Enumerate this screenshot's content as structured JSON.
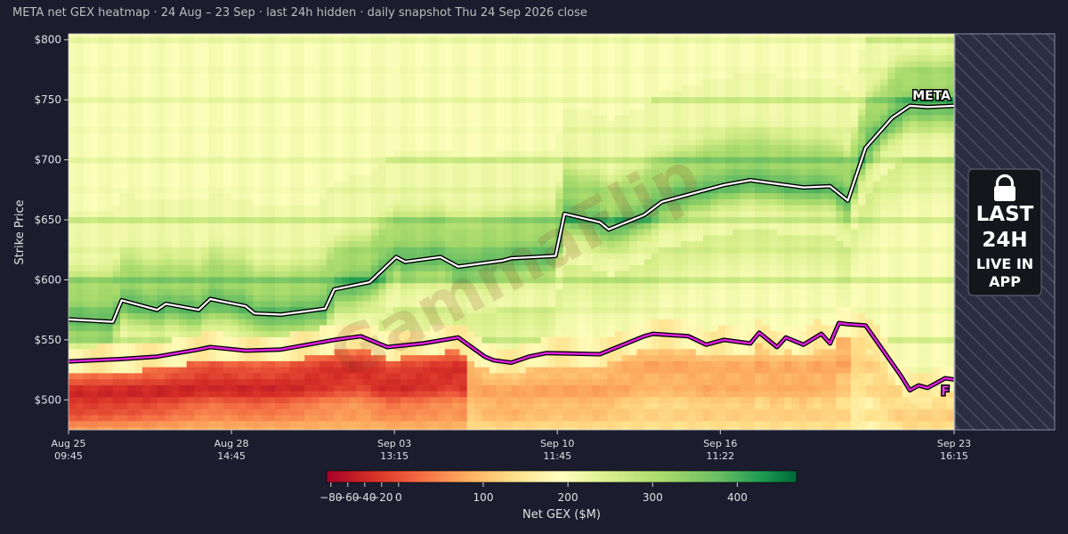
{
  "chart_data": {
    "type": "heatmap",
    "title": "META net GEX heatmap · 24 Aug – 23 Sep · last 24h hidden · daily snapshot Thu 24 Sep 2026 close",
    "ylabel": "Strike Price",
    "ylim": [
      475,
      805
    ],
    "yticks": [
      {
        "value": 800,
        "label": "$800"
      },
      {
        "value": 750,
        "label": "$750"
      },
      {
        "value": 700,
        "label": "$700"
      },
      {
        "value": 650,
        "label": "$650"
      },
      {
        "value": 600,
        "label": "$600"
      },
      {
        "value": 550,
        "label": "$550"
      },
      {
        "value": 500,
        "label": "$500"
      }
    ],
    "xticks": [
      {
        "label1": "Aug 25",
        "label2": "09:45",
        "t": 0.0
      },
      {
        "label1": "Aug 28",
        "label2": "14:45",
        "t": 0.184
      },
      {
        "label1": "Sep 03",
        "label2": "13:15",
        "t": 0.368
      },
      {
        "label1": "Sep 10",
        "label2": "11:45",
        "t": 0.552
      },
      {
        "label1": "Sep 16",
        "label2": "11:22",
        "t": 0.736
      },
      {
        "label1": "Sep 23",
        "label2": "16:15",
        "t": 1.0
      }
    ],
    "colorbar": {
      "label": "Net GEX ($M)",
      "min": -85,
      "max": 470,
      "ticks": [
        -80,
        -60,
        -40,
        -20,
        0,
        100,
        200,
        300,
        400
      ],
      "tick_labels": [
        "−80",
        "−60",
        "−40",
        "−20",
        "0",
        "100",
        "200",
        "300",
        "400"
      ]
    },
    "price_series": {
      "name": "META",
      "t": [
        0.0,
        0.05,
        0.06,
        0.1,
        0.11,
        0.147,
        0.16,
        0.2,
        0.21,
        0.24,
        0.29,
        0.3,
        0.34,
        0.37,
        0.38,
        0.42,
        0.44,
        0.49,
        0.5,
        0.55,
        0.56,
        0.6,
        0.61,
        0.65,
        0.67,
        0.72,
        0.74,
        0.77,
        0.8,
        0.83,
        0.86,
        0.88,
        0.9,
        0.93,
        0.95,
        0.97,
        1.0
      ],
      "values": [
        567,
        565,
        583,
        575,
        580,
        575,
        584,
        578,
        572,
        571,
        576,
        592,
        598,
        619,
        615,
        619,
        611,
        616,
        618,
        620,
        655,
        648,
        642,
        654,
        665,
        675,
        679,
        683,
        680,
        677,
        678,
        666,
        710,
        735,
        745,
        744,
        745
      ]
    },
    "flip_series": {
      "name": "F",
      "t": [
        0.0,
        0.06,
        0.1,
        0.147,
        0.16,
        0.2,
        0.24,
        0.3,
        0.33,
        0.36,
        0.4,
        0.44,
        0.47,
        0.48,
        0.5,
        0.52,
        0.54,
        0.6,
        0.65,
        0.66,
        0.7,
        0.72,
        0.74,
        0.77,
        0.78,
        0.8,
        0.81,
        0.83,
        0.85,
        0.86,
        0.87,
        0.88,
        0.9,
        0.94,
        0.95,
        0.96,
        0.97,
        0.99,
        1.0
      ],
      "values": [
        532,
        534,
        536,
        542,
        544,
        541,
        542,
        550,
        553,
        544,
        547,
        552,
        536,
        533,
        531,
        536,
        539,
        538,
        553,
        555,
        553,
        546,
        550,
        547,
        556,
        544,
        552,
        546,
        555,
        547,
        564,
        563,
        562,
        520,
        508,
        512,
        510,
        518,
        517
      ]
    },
    "hidden_window": {
      "label_lines": [
        "LAST",
        "24H",
        "LIVE IN",
        "APP"
      ]
    },
    "watermark": "GammaFlip"
  }
}
